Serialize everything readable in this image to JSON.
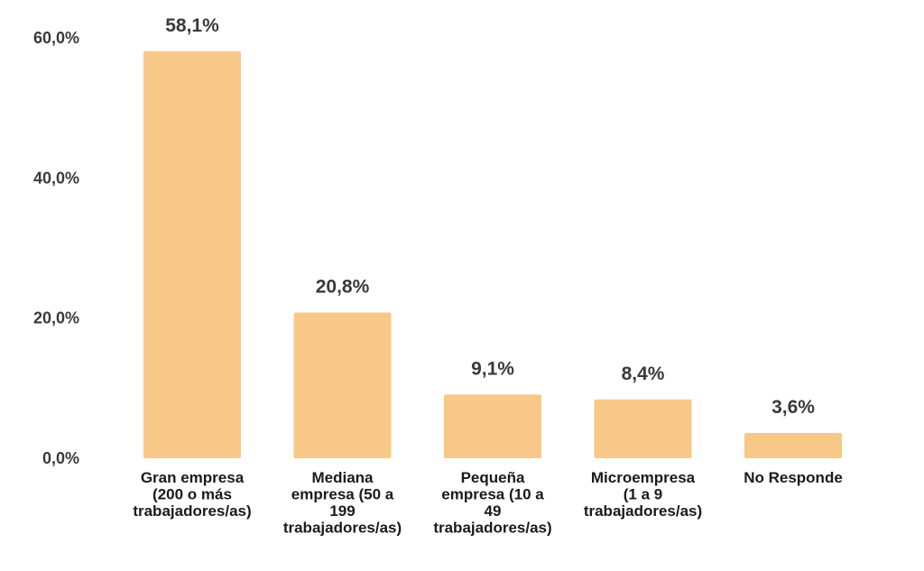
{
  "chart_data": {
    "type": "bar",
    "categories": [
      [
        "Gran empresa",
        "(200 o más",
        "trabajadores/as)"
      ],
      [
        "Mediana",
        "empresa (50 a",
        "199",
        "trabajadores/as)"
      ],
      [
        "Pequeña",
        "empresa (10 a",
        "49",
        "trabajadores/as)"
      ],
      [
        "Microempresa",
        "(1 a 9",
        "trabajadores/as)"
      ],
      [
        "No Responde"
      ]
    ],
    "values": [
      58.1,
      20.8,
      9.1,
      8.4,
      3.6
    ],
    "data_labels": [
      "58,1%",
      "20,8%",
      "9,1%",
      "8,4%",
      "3,6%"
    ],
    "y_ticks": [
      {
        "value": 0,
        "label": "0,0%"
      },
      {
        "value": 20,
        "label": "20,0%"
      },
      {
        "value": 40,
        "label": "40,0%"
      },
      {
        "value": 60,
        "label": "60,0%"
      }
    ],
    "ylim": [
      0,
      60
    ],
    "grid": false,
    "legend": "none",
    "bar_color": "#F8C888"
  }
}
